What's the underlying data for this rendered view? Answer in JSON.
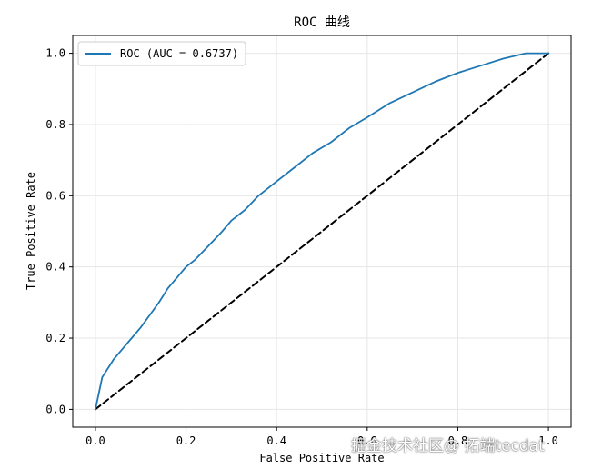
{
  "chart_data": {
    "type": "line",
    "title": "ROC 曲线",
    "xlabel": "False Positive Rate",
    "ylabel": "True Positive Rate",
    "xlim": [
      -0.05,
      1.05
    ],
    "ylim": [
      -0.05,
      1.05
    ],
    "xticks": [
      0.0,
      0.2,
      0.4,
      0.6,
      0.8,
      1.0
    ],
    "yticks": [
      0.0,
      0.2,
      0.4,
      0.6,
      0.8,
      1.0
    ],
    "xtick_labels": [
      "0.0",
      "0.2",
      "0.4",
      "0.6",
      "0.8",
      "1.0"
    ],
    "ytick_labels": [
      "0.0",
      "0.2",
      "0.4",
      "0.6",
      "0.8",
      "1.0"
    ],
    "grid": true,
    "legend_position": "upper-left",
    "series": [
      {
        "name": "ROC (AUC = 0.6737)",
        "color": "#1f77b4",
        "style": "solid",
        "x": [
          0.0,
          0.005,
          0.01,
          0.015,
          0.02,
          0.03,
          0.04,
          0.05,
          0.06,
          0.08,
          0.1,
          0.12,
          0.14,
          0.16,
          0.18,
          0.2,
          0.22,
          0.25,
          0.28,
          0.3,
          0.33,
          0.36,
          0.4,
          0.44,
          0.48,
          0.52,
          0.56,
          0.6,
          0.65,
          0.7,
          0.75,
          0.8,
          0.85,
          0.9,
          0.95,
          1.0
        ],
        "y": [
          0.0,
          0.03,
          0.06,
          0.09,
          0.1,
          0.12,
          0.14,
          0.155,
          0.17,
          0.2,
          0.23,
          0.265,
          0.3,
          0.34,
          0.37,
          0.4,
          0.42,
          0.46,
          0.5,
          0.53,
          0.56,
          0.6,
          0.64,
          0.68,
          0.72,
          0.75,
          0.79,
          0.82,
          0.86,
          0.89,
          0.92,
          0.945,
          0.965,
          0.985,
          1.0,
          1.0
        ]
      },
      {
        "name": "",
        "color": "#000000",
        "style": "dashed",
        "x": [
          0.0,
          1.0
        ],
        "y": [
          0.0,
          1.0
        ]
      }
    ]
  },
  "watermark": "掘金技术社区@ 拓端tecdat"
}
